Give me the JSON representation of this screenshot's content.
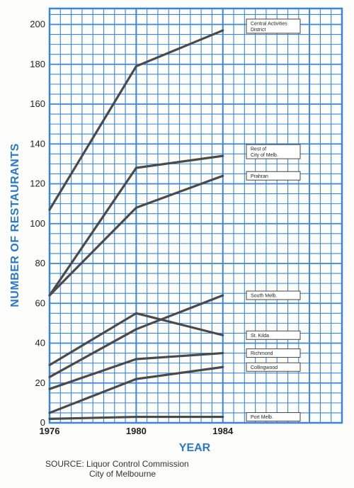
{
  "chart_data": {
    "type": "line",
    "xlabel": "YEAR",
    "ylabel": "NUMBER OF RESTAURANTS",
    "x_ticks": [
      "1976",
      "1980",
      "1984"
    ],
    "y_ticks": [
      "0",
      "20",
      "40",
      "60",
      "80",
      "100",
      "120",
      "140",
      "160",
      "180",
      "200"
    ],
    "xlim": [
      1976,
      1989.5
    ],
    "ylim": [
      0,
      208
    ],
    "grid": true,
    "series": [
      {
        "name": "Central Activities District",
        "label_lines": [
          "Central Activities",
          "District"
        ],
        "x": [
          1976,
          1980,
          1984
        ],
        "values": [
          107,
          179,
          197
        ]
      },
      {
        "name": "Rest of City of Melb.",
        "label_lines": [
          "Rest of",
          "City of Melb."
        ],
        "x": [
          1976,
          1980,
          1984
        ],
        "values": [
          64,
          128,
          134
        ]
      },
      {
        "name": "Prahran",
        "label_lines": [
          "Prahran"
        ],
        "x": [
          1976,
          1980,
          1984
        ],
        "values": [
          64,
          108,
          124
        ]
      },
      {
        "name": "South Melb.",
        "label_lines": [
          "South Melb."
        ],
        "x": [
          1976,
          1980,
          1984
        ],
        "values": [
          23,
          47,
          64
        ]
      },
      {
        "name": "St. Kilda",
        "label_lines": [
          "St. Kilda"
        ],
        "x": [
          1976,
          1980,
          1984
        ],
        "values": [
          29,
          55,
          44
        ]
      },
      {
        "name": "Richmond",
        "label_lines": [
          "Richmond"
        ],
        "x": [
          1976,
          1980,
          1984
        ],
        "values": [
          17,
          32,
          35
        ]
      },
      {
        "name": "Collingwood",
        "label_lines": [
          "Collingwood"
        ],
        "x": [
          1976,
          1980,
          1984
        ],
        "values": [
          5,
          22,
          28
        ]
      },
      {
        "name": "Port Melb.",
        "label_lines": [
          "Port Melb."
        ],
        "x": [
          1976,
          1980,
          1984
        ],
        "values": [
          2,
          3,
          3
        ]
      }
    ]
  },
  "source": {
    "line1": "SOURCE: Liquor Control Commission",
    "line2": "City of Melbourne"
  },
  "colors": {
    "grid": "#3b86d6",
    "line": "#4a4a4a",
    "label_blue": "#2a78c8"
  }
}
